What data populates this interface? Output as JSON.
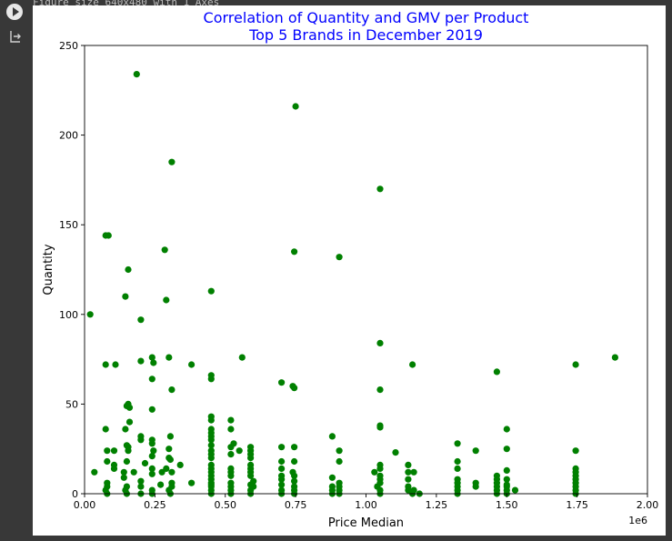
{
  "cell": {
    "prev_output_text": "Figure size 640x480 with 1 Axes",
    "run_icon": "play-circle-icon",
    "output_icon": "output-arrow-icon"
  },
  "chart_data": {
    "type": "scatter",
    "title": [
      "Correlation of Quantity and GMV per Product",
      "Top 5 Brands in December 2019"
    ],
    "title_color": "#0000ff",
    "xlabel": "Price Median",
    "ylabel": "Quantity",
    "x_offset_label": "1e6",
    "xlim": [
      0,
      2000000
    ],
    "ylim": [
      0,
      250
    ],
    "xticks": [
      0,
      250000,
      500000,
      750000,
      1000000,
      1250000,
      1500000,
      1750000,
      2000000
    ],
    "xtick_labels": [
      "0.00",
      "0.25",
      "0.50",
      "0.75",
      "1.00",
      "1.25",
      "1.50",
      "1.75",
      "2.00"
    ],
    "yticks": [
      0,
      50,
      100,
      150,
      200,
      250
    ],
    "ytick_labels": [
      "0",
      "50",
      "100",
      "150",
      "200",
      "250"
    ],
    "grid": false,
    "marker_color": "#008000",
    "points": [
      [
        185000,
        234
      ],
      [
        750000,
        216
      ],
      [
        310000,
        185
      ],
      [
        1050000,
        170
      ],
      [
        75000,
        144
      ],
      [
        85000,
        144
      ],
      [
        285000,
        136
      ],
      [
        745000,
        135
      ],
      [
        905000,
        132
      ],
      [
        155000,
        125
      ],
      [
        450000,
        113
      ],
      [
        145000,
        110
      ],
      [
        290000,
        108
      ],
      [
        20000,
        100
      ],
      [
        200000,
        97
      ],
      [
        1050000,
        84
      ],
      [
        1885000,
        76
      ],
      [
        560000,
        76
      ],
      [
        240000,
        76
      ],
      [
        300000,
        76
      ],
      [
        200000,
        74
      ],
      [
        245000,
        73
      ],
      [
        75000,
        72
      ],
      [
        110000,
        72
      ],
      [
        380000,
        72
      ],
      [
        1165000,
        72
      ],
      [
        1745000,
        72
      ],
      [
        1465000,
        68
      ],
      [
        450000,
        66
      ],
      [
        450000,
        64
      ],
      [
        240000,
        64
      ],
      [
        700000,
        62
      ],
      [
        740000,
        60
      ],
      [
        745000,
        59
      ],
      [
        310000,
        58
      ],
      [
        1050000,
        58
      ],
      [
        155000,
        50
      ],
      [
        150000,
        49
      ],
      [
        160000,
        48
      ],
      [
        240000,
        47
      ],
      [
        450000,
        43
      ],
      [
        450000,
        41
      ],
      [
        520000,
        41
      ],
      [
        160000,
        40
      ],
      [
        1050000,
        38
      ],
      [
        1050000,
        37
      ],
      [
        75000,
        36
      ],
      [
        145000,
        36
      ],
      [
        450000,
        36
      ],
      [
        520000,
        36
      ],
      [
        1500000,
        36
      ],
      [
        450000,
        34
      ],
      [
        450000,
        32
      ],
      [
        880000,
        32
      ],
      [
        200000,
        32
      ],
      [
        305000,
        32
      ],
      [
        200000,
        30
      ],
      [
        240000,
        30
      ],
      [
        450000,
        30
      ],
      [
        240000,
        28
      ],
      [
        1325000,
        28
      ],
      [
        530000,
        28
      ],
      [
        450000,
        27
      ],
      [
        150000,
        27
      ],
      [
        155000,
        26
      ],
      [
        590000,
        26
      ],
      [
        700000,
        26
      ],
      [
        745000,
        26
      ],
      [
        520000,
        26
      ],
      [
        300000,
        25
      ],
      [
        80000,
        24
      ],
      [
        105000,
        24
      ],
      [
        155000,
        24
      ],
      [
        245000,
        24
      ],
      [
        450000,
        24
      ],
      [
        550000,
        24
      ],
      [
        590000,
        24
      ],
      [
        905000,
        24
      ],
      [
        1390000,
        24
      ],
      [
        1745000,
        24
      ],
      [
        1500000,
        25
      ],
      [
        450000,
        22
      ],
      [
        520000,
        22
      ],
      [
        590000,
        22
      ],
      [
        1105000,
        23
      ],
      [
        240000,
        21
      ],
      [
        300000,
        20
      ],
      [
        450000,
        20
      ],
      [
        590000,
        20
      ],
      [
        305000,
        19
      ],
      [
        80000,
        18
      ],
      [
        150000,
        18
      ],
      [
        700000,
        18
      ],
      [
        745000,
        18
      ],
      [
        905000,
        18
      ],
      [
        1325000,
        18
      ],
      [
        105000,
        16
      ],
      [
        215000,
        17
      ],
      [
        340000,
        16
      ],
      [
        450000,
        16
      ],
      [
        590000,
        16
      ],
      [
        1050000,
        16
      ],
      [
        1150000,
        16
      ],
      [
        105000,
        14
      ],
      [
        240000,
        14
      ],
      [
        290000,
        14
      ],
      [
        450000,
        14
      ],
      [
        520000,
        14
      ],
      [
        590000,
        14
      ],
      [
        700000,
        14
      ],
      [
        1050000,
        14
      ],
      [
        1325000,
        14
      ],
      [
        1745000,
        14
      ],
      [
        140000,
        12
      ],
      [
        175000,
        12
      ],
      [
        275000,
        12
      ],
      [
        310000,
        12
      ],
      [
        450000,
        12
      ],
      [
        520000,
        12
      ],
      [
        590000,
        12
      ],
      [
        740000,
        12
      ],
      [
        1030000,
        12
      ],
      [
        1150000,
        12
      ],
      [
        1170000,
        12
      ],
      [
        1500000,
        13
      ],
      [
        1745000,
        12
      ],
      [
        35000,
        12
      ],
      [
        240000,
        11
      ],
      [
        450000,
        10
      ],
      [
        520000,
        10
      ],
      [
        590000,
        10
      ],
      [
        700000,
        10
      ],
      [
        745000,
        10
      ],
      [
        1050000,
        10
      ],
      [
        1465000,
        10
      ],
      [
        1745000,
        10
      ],
      [
        140000,
        9
      ],
      [
        450000,
        8
      ],
      [
        700000,
        8
      ],
      [
        880000,
        9
      ],
      [
        1050000,
        8
      ],
      [
        1150000,
        8
      ],
      [
        1325000,
        8
      ],
      [
        1465000,
        8
      ],
      [
        1745000,
        8
      ],
      [
        1500000,
        8
      ],
      [
        200000,
        7
      ],
      [
        310000,
        6
      ],
      [
        380000,
        6
      ],
      [
        450000,
        6
      ],
      [
        520000,
        6
      ],
      [
        600000,
        7
      ],
      [
        745000,
        7
      ],
      [
        905000,
        6
      ],
      [
        1050000,
        6
      ],
      [
        1325000,
        6
      ],
      [
        1390000,
        6
      ],
      [
        1465000,
        6
      ],
      [
        1745000,
        6
      ],
      [
        80000,
        6
      ],
      [
        270000,
        5
      ],
      [
        450000,
        5
      ],
      [
        590000,
        5
      ],
      [
        700000,
        5
      ],
      [
        1500000,
        5
      ],
      [
        80000,
        4
      ],
      [
        150000,
        4
      ],
      [
        200000,
        4
      ],
      [
        310000,
        4
      ],
      [
        450000,
        4
      ],
      [
        520000,
        4
      ],
      [
        600000,
        4
      ],
      [
        745000,
        4
      ],
      [
        880000,
        4
      ],
      [
        905000,
        4
      ],
      [
        1040000,
        4
      ],
      [
        1150000,
        4
      ],
      [
        1325000,
        4
      ],
      [
        1390000,
        4
      ],
      [
        1465000,
        4
      ],
      [
        1500000,
        4
      ],
      [
        1745000,
        4
      ],
      [
        75000,
        2
      ],
      [
        145000,
        2
      ],
      [
        240000,
        2
      ],
      [
        300000,
        2
      ],
      [
        450000,
        2
      ],
      [
        520000,
        2
      ],
      [
        590000,
        2
      ],
      [
        700000,
        2
      ],
      [
        745000,
        2
      ],
      [
        880000,
        2
      ],
      [
        905000,
        2
      ],
      [
        1050000,
        2
      ],
      [
        1150000,
        2
      ],
      [
        1170000,
        2
      ],
      [
        1325000,
        2
      ],
      [
        1465000,
        2
      ],
      [
        1500000,
        2
      ],
      [
        1530000,
        2
      ],
      [
        1745000,
        2
      ],
      [
        80000,
        0
      ],
      [
        150000,
        0
      ],
      [
        200000,
        0
      ],
      [
        240000,
        0
      ],
      [
        305000,
        0
      ],
      [
        450000,
        0
      ],
      [
        520000,
        0
      ],
      [
        590000,
        0
      ],
      [
        700000,
        0
      ],
      [
        745000,
        0
      ],
      [
        880000,
        0
      ],
      [
        905000,
        0
      ],
      [
        1050000,
        0
      ],
      [
        1165000,
        0
      ],
      [
        1190000,
        0
      ],
      [
        1325000,
        0
      ],
      [
        1465000,
        0
      ],
      [
        1500000,
        0
      ],
      [
        1745000,
        0
      ]
    ]
  }
}
